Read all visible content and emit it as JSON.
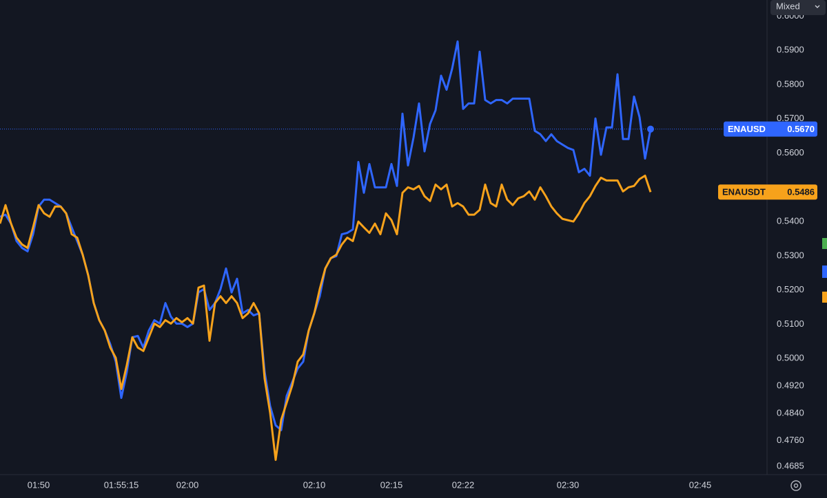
{
  "chart_data": {
    "type": "line",
    "scale_mode": "Mixed",
    "categories": [
      null,
      null,
      null,
      null,
      null,
      null,
      null,
      "01:50",
      null,
      null,
      null,
      null,
      null,
      null,
      null,
      null,
      null,
      null,
      null,
      null,
      null,
      null,
      "01:55:15",
      null,
      null,
      null,
      null,
      null,
      null,
      null,
      null,
      null,
      null,
      null,
      "02:00",
      null,
      null,
      null,
      null,
      null,
      null,
      null,
      null,
      null,
      null,
      null,
      null,
      null,
      null,
      null,
      null,
      null,
      null,
      null,
      null,
      null,
      null,
      "02:10",
      null,
      null,
      null,
      null,
      null,
      null,
      null,
      null,
      null,
      null,
      null,
      null,
      null,
      "02:15",
      null,
      null,
      null,
      null,
      null,
      null,
      null,
      null,
      null,
      null,
      null,
      null,
      "02:22",
      null,
      null,
      null,
      null,
      null,
      null,
      null,
      null,
      null,
      null,
      null,
      null,
      null,
      null,
      null,
      null,
      null,
      null,
      "02:30",
      null,
      null,
      null,
      null,
      null,
      null,
      null,
      null,
      null,
      null,
      null,
      null,
      null,
      null,
      null,
      null,
      null,
      null,
      null,
      null,
      null,
      null,
      null,
      "02:45"
    ],
    "series": [
      {
        "name": "ENAUSD",
        "color": "#2f66ff",
        "values": [
          0.5414,
          0.542,
          0.5394,
          0.5343,
          0.5323,
          0.5313,
          0.5363,
          0.5444,
          0.5464,
          0.5464,
          0.5454,
          0.5444,
          0.5424,
          0.5383,
          0.5343,
          0.5303,
          0.5243,
          0.5162,
          0.5112,
          0.5082,
          0.5042,
          0.4991,
          0.4885,
          0.4961,
          0.5062,
          0.5066,
          0.5032,
          0.5082,
          0.5112,
          0.5102,
          0.5162,
          0.5122,
          0.5102,
          0.5102,
          0.5092,
          0.5102,
          0.5193,
          0.5203,
          0.5142,
          0.5162,
          0.5203,
          0.5263,
          0.5193,
          0.5233,
          0.5132,
          0.5142,
          0.5126,
          0.5132,
          0.4961,
          0.4861,
          0.4805,
          0.4791,
          0.4891,
          0.4931,
          0.4971,
          0.4991,
          0.5082,
          0.5132,
          0.5182,
          0.5263,
          0.5293,
          0.5299,
          0.5363,
          0.5367,
          0.5377,
          0.5574,
          0.5484,
          0.5568,
          0.55,
          0.55,
          0.55,
          0.5568,
          0.5504,
          0.5715,
          0.5564,
          0.5645,
          0.5745,
          0.5605,
          0.5685,
          0.5725,
          0.5826,
          0.5785,
          0.5846,
          0.5926,
          0.5729,
          0.5745,
          0.5745,
          0.5896,
          0.5755,
          0.5745,
          0.5755,
          0.5755,
          0.5745,
          0.5759,
          0.5759,
          0.5759,
          0.5759,
          0.5665,
          0.5655,
          0.5635,
          0.5655,
          0.5635,
          0.5625,
          0.5615,
          0.5609,
          0.5544,
          0.5554,
          0.5534,
          0.5701,
          0.5595,
          0.5675,
          0.5675,
          0.583,
          0.5641,
          0.5641,
          0.5765,
          0.5705,
          0.5584,
          0.567,
          null,
          null,
          null,
          null,
          null,
          null,
          null,
          null,
          null
        ],
        "value_labels": [
          null,
          null,
          null,
          null,
          null,
          null,
          null,
          null,
          null,
          null,
          null,
          null,
          null,
          null,
          null,
          null,
          null,
          null,
          null,
          null,
          null,
          null,
          null,
          null,
          null,
          null,
          null,
          null,
          null,
          null,
          null,
          null,
          null,
          null,
          null,
          null,
          null,
          null,
          null,
          null,
          null,
          null,
          null,
          null,
          null,
          null,
          null,
          null,
          null,
          null,
          null,
          null,
          null,
          null,
          null,
          null,
          null,
          null,
          null,
          null,
          null,
          null,
          null,
          null,
          null,
          null,
          null,
          null,
          null,
          null,
          null,
          null,
          null,
          null,
          null,
          null,
          null,
          null,
          null,
          null,
          null,
          null,
          null,
          null,
          null,
          null,
          null,
          null,
          null,
          null,
          null,
          null,
          null,
          null,
          null,
          null,
          null,
          null,
          null,
          null,
          null,
          null,
          null,
          null,
          null,
          null,
          null,
          null,
          null,
          null,
          null,
          null,
          null,
          null,
          null,
          null,
          null,
          null,
          "0.5670",
          null,
          null,
          null,
          null,
          null,
          null,
          null,
          null,
          null
        ]
      },
      {
        "name": "ENAUSDT",
        "color": "#f7a21b",
        "values": [
          0.5394,
          0.5448,
          0.5394,
          0.5353,
          0.5333,
          0.5323,
          0.5383,
          0.5448,
          0.5424,
          0.5414,
          0.5444,
          0.5444,
          0.5424,
          0.5363,
          0.5353,
          0.5303,
          0.5243,
          0.5162,
          0.5112,
          0.5082,
          0.5032,
          0.5002,
          0.4911,
          0.4981,
          0.5062,
          0.5032,
          0.5022,
          0.5062,
          0.5102,
          0.5092,
          0.5112,
          0.5102,
          0.5118,
          0.5106,
          0.5118,
          0.5102,
          0.5207,
          0.5213,
          0.5052,
          0.5162,
          0.5182,
          0.5162,
          0.5182,
          0.5162,
          0.5118,
          0.5132,
          0.5162,
          0.5132,
          0.4941,
          0.4841,
          0.4704,
          0.4821,
          0.4871,
          0.4921,
          0.4991,
          0.5012,
          0.5082,
          0.5132,
          0.5203,
          0.5263,
          0.5293,
          0.5303,
          0.5333,
          0.5353,
          0.5343,
          0.54,
          0.5383,
          0.5367,
          0.5394,
          0.5363,
          0.5424,
          0.5404,
          0.5363,
          0.5484,
          0.55,
          0.5494,
          0.5504,
          0.5474,
          0.546,
          0.5508,
          0.5494,
          0.5508,
          0.5444,
          0.5454,
          0.5444,
          0.542,
          0.542,
          0.5434,
          0.5508,
          0.5454,
          0.5444,
          0.5508,
          0.5464,
          0.5448,
          0.5468,
          0.5474,
          0.5488,
          0.5464,
          0.55,
          0.5474,
          0.5444,
          0.5424,
          0.5408,
          0.5404,
          0.54,
          0.5424,
          0.5454,
          0.5474,
          0.5504,
          0.5528,
          0.552,
          0.552,
          0.552,
          0.5488,
          0.55,
          0.5504,
          0.5524,
          0.5534,
          0.5486,
          null,
          null,
          null,
          null,
          null,
          null,
          null,
          null,
          null
        ],
        "value_labels": [
          null,
          null,
          null,
          null,
          null,
          null,
          null,
          null,
          null,
          null,
          null,
          null,
          null,
          null,
          null,
          null,
          null,
          null,
          null,
          null,
          null,
          null,
          null,
          null,
          null,
          null,
          null,
          null,
          null,
          null,
          null,
          null,
          null,
          null,
          null,
          null,
          null,
          null,
          null,
          null,
          null,
          null,
          null,
          null,
          null,
          null,
          null,
          null,
          null,
          null,
          null,
          null,
          null,
          null,
          null,
          null,
          null,
          null,
          null,
          null,
          null,
          null,
          null,
          null,
          null,
          null,
          null,
          null,
          null,
          null,
          null,
          null,
          null,
          null,
          null,
          null,
          null,
          null,
          null,
          null,
          null,
          null,
          null,
          null,
          null,
          null,
          null,
          null,
          null,
          null,
          null,
          null,
          null,
          null,
          null,
          null,
          null,
          null,
          null,
          null,
          null,
          null,
          null,
          null,
          null,
          null,
          null,
          null,
          null,
          null,
          null,
          null,
          null,
          null,
          null,
          null,
          null,
          null,
          "0.5486",
          null,
          null,
          null,
          null,
          null,
          null,
          null,
          null,
          null
        ]
      }
    ],
    "ylim": [
      0.4661,
      0.6047
    ],
    "yticks": [
      {
        "value": 0.6,
        "label": "0.6000"
      },
      {
        "value": 0.59,
        "label": "0.5900"
      },
      {
        "value": 0.58,
        "label": "0.5800"
      },
      {
        "value": 0.57,
        "label": "0.5700"
      },
      {
        "value": 0.56,
        "label": "0.5600"
      },
      {
        "value": 0.54,
        "label": "0.5400"
      },
      {
        "value": 0.53,
        "label": "0.5300"
      },
      {
        "value": 0.52,
        "label": "0.5200"
      },
      {
        "value": 0.51,
        "label": "0.5100"
      },
      {
        "value": 0.5,
        "label": "0.5000"
      },
      {
        "value": 0.492,
        "label": "0.4920"
      },
      {
        "value": 0.484,
        "label": "0.4840"
      },
      {
        "value": 0.476,
        "label": "0.4760"
      },
      {
        "value": 0.4685,
        "label": "0.4685"
      }
    ],
    "grid": false
  }
}
